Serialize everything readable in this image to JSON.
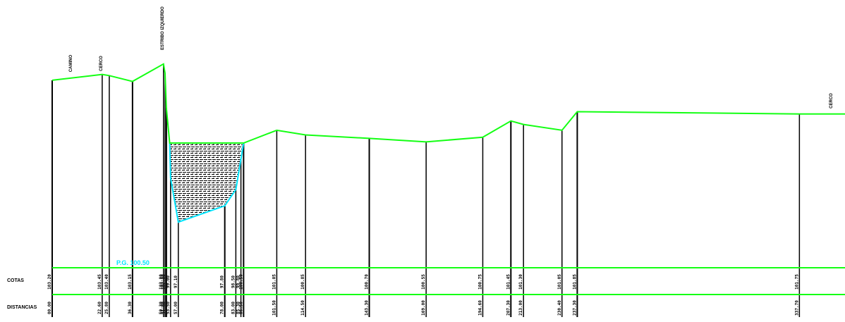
{
  "colors": {
    "background": "#ffffff",
    "terrain_line": "#14ff14",
    "datum_line": "#14ff14",
    "water_outline": "#00e5ff",
    "hatch": "#000000",
    "station_line": "#000000"
  },
  "rows": {
    "elevation_label": "COTAS",
    "distance_label": "DISTANCIAS"
  },
  "water_level_label": "P.G. 100.50",
  "top_annotations": [
    "CAMINO",
    "CERCO",
    "ESTRIBO IZQUIERDO",
    "CERCO"
  ],
  "stations": [
    {
      "x_ref": 0.0,
      "terrain": 103.2,
      "distance": "00.00",
      "elevation": "103.20"
    },
    {
      "x_ref": 22.6,
      "terrain": 103.45,
      "distance": "22.60",
      "elevation": "103.45"
    },
    {
      "x_ref": 25.8,
      "terrain": 103.4,
      "distance": "25.80",
      "elevation": "103.40"
    },
    {
      "x_ref": 36.3,
      "terrain": 103.15,
      "distance": "36.30",
      "elevation": "103.15"
    },
    {
      "x_ref": 50.3,
      "terrain": 103.9,
      "distance": "50.30",
      "elevation": "103.90"
    },
    {
      "x_ref": 51.0,
      "terrain": 103.5,
      "distance": "51.00",
      "elevation": "103.50"
    },
    {
      "x_ref": 51.6,
      "terrain": 102.0,
      "distance": "51.60",
      "elevation": "102.00"
    },
    {
      "x_ref": 53.5,
      "terrain": 99.0,
      "distance": "53.50",
      "elevation": "99.00"
    },
    {
      "x_ref": 57.0,
      "terrain": 97.1,
      "distance": "57.00",
      "elevation": "97.10"
    },
    {
      "x_ref": 78.0,
      "terrain": 97.8,
      "distance": "78.00",
      "elevation": "97.80"
    },
    {
      "x_ref": 83.0,
      "terrain": 98.5,
      "distance": "83.00",
      "elevation": "98.50"
    },
    {
      "x_ref": 85.3,
      "terrain": 99.8,
      "distance": "85.30",
      "elevation": "99.80"
    },
    {
      "x_ref": 86.5,
      "terrain": 100.5,
      "distance": "86.50",
      "elevation": "100.50"
    },
    {
      "x_ref": 101.5,
      "terrain": 101.05,
      "distance": "101.50",
      "elevation": "101.05"
    },
    {
      "x_ref": 114.5,
      "terrain": 100.85,
      "distance": "114.50",
      "elevation": "100.85"
    },
    {
      "x_ref": 143.3,
      "terrain": 100.7,
      "distance": "143.30",
      "elevation": "100.70"
    },
    {
      "x_ref": 169.0,
      "terrain": 100.55,
      "distance": "169.00",
      "elevation": "100.55"
    },
    {
      "x_ref": 194.6,
      "terrain": 100.75,
      "distance": "194.60",
      "elevation": "100.75"
    },
    {
      "x_ref": 207.3,
      "terrain": 101.45,
      "distance": "207.30",
      "elevation": "101.45"
    },
    {
      "x_ref": 213.0,
      "terrain": 101.3,
      "distance": "213.00",
      "elevation": "101.30"
    },
    {
      "x_ref": 230.4,
      "terrain": 101.05,
      "distance": "230.40",
      "elevation": "101.05"
    },
    {
      "x_ref": 237.3,
      "terrain": 101.85,
      "distance": "237.30",
      "elevation": "101.85"
    },
    {
      "x_ref": 337.7,
      "terrain": 101.75,
      "distance": "337.70",
      "elevation": "101.75"
    }
  ],
  "terrain_end": {
    "x_ref": 359.0,
    "terrain": 101.75
  },
  "water": {
    "level": 100.5,
    "left_x_ref": 53.1,
    "right_x_ref": 86.5,
    "bed": [
      [
        53.1,
        100.5
      ],
      [
        53.5,
        99.0
      ],
      [
        57.0,
        97.1
      ],
      [
        78.0,
        97.8
      ],
      [
        83.0,
        98.5
      ],
      [
        85.3,
        99.8
      ],
      [
        86.5,
        100.5
      ]
    ]
  }
}
